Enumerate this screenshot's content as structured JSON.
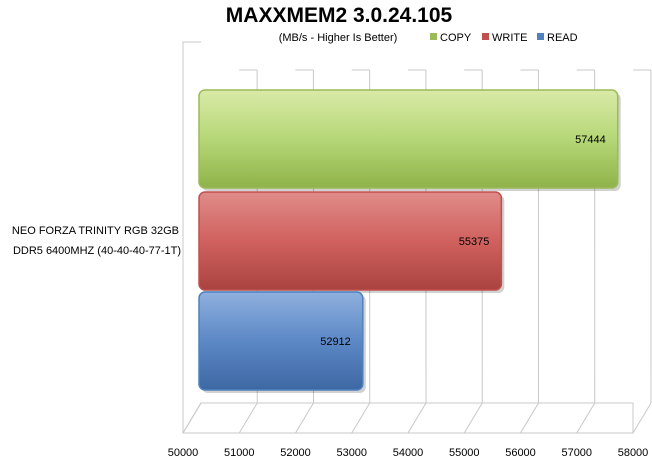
{
  "chart_data": {
    "type": "bar",
    "orientation": "horizontal",
    "title": "MAXXMEM2 3.0.24.105",
    "subtitle": "(MB/s - Higher Is Better)",
    "categories": [
      "NEO FORZA TRINITY RGB 32GB DDR5 6400MHZ (40-40-40-77-1T)"
    ],
    "category_lines": [
      "NEO FORZA TRINITY RGB 32GB",
      "DDR5 6400MHZ (40-40-40-77-1T)"
    ],
    "series": [
      {
        "name": "COPY",
        "values": [
          57444
        ],
        "color": "#9bbb59"
      },
      {
        "name": "WRITE",
        "values": [
          55375
        ],
        "color": "#c0504d"
      },
      {
        "name": "READ",
        "values": [
          52912
        ],
        "color": "#4f81bd"
      }
    ],
    "xlim": [
      50000,
      58000
    ],
    "xticks": [
      50000,
      51000,
      52000,
      53000,
      54000,
      55000,
      56000,
      57000,
      58000
    ],
    "grid": true,
    "legend_position": "top-right",
    "style": "3d"
  }
}
